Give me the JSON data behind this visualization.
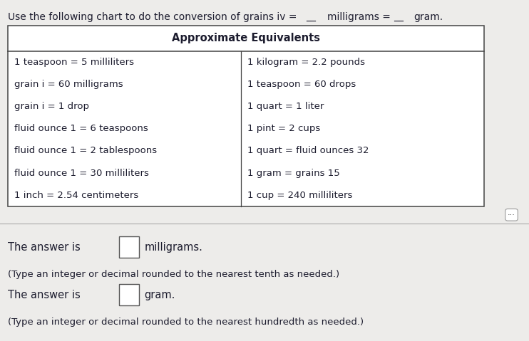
{
  "title_text": "Use the following chart to do the conversion of grains iv =",
  "title_blank1": "__",
  "title_suffix": "milligrams =",
  "title_blank2": "__",
  "title_suffix2": "gram.",
  "table_header": "Approximate Equivalents",
  "left_col": [
    "1 teaspoon = 5 milliliters",
    "grain i = 60 milligrams",
    "grain i = 1 drop",
    "fluid ounce 1 = 6 teaspoons",
    "fluid ounce 1 = 2 tablespoons",
    "fluid ounce 1 = 30 milliliters",
    "1 inch = 2.54 centimeters"
  ],
  "right_col": [
    "1 kilogram = 2.2 pounds",
    "1 teaspoon = 60 drops",
    "1 quart = 1 liter",
    "1 pint = 2 cups",
    "1 quart = fluid ounces 32",
    "1 gram = grains 15",
    "1 cup = 240 milliliters"
  ],
  "answer_line1": "The answer is",
  "answer_unit1": "milligrams.",
  "answer_sub1": "(Type an integer or decimal rounded to the nearest tenth as needed.)",
  "answer_line2": "The answer is",
  "answer_unit2": "gram.",
  "answer_sub2": "(Type an integer or decimal rounded to the nearest hundredth as needed.)",
  "bg_color": "#edecea",
  "table_bg": "#ffffff",
  "text_color": "#1c1c2e",
  "header_fontsize": 10.5,
  "body_fontsize": 9.5,
  "title_fontsize": 10,
  "answer_fontsize": 10.5,
  "sub_fontsize": 9.5
}
